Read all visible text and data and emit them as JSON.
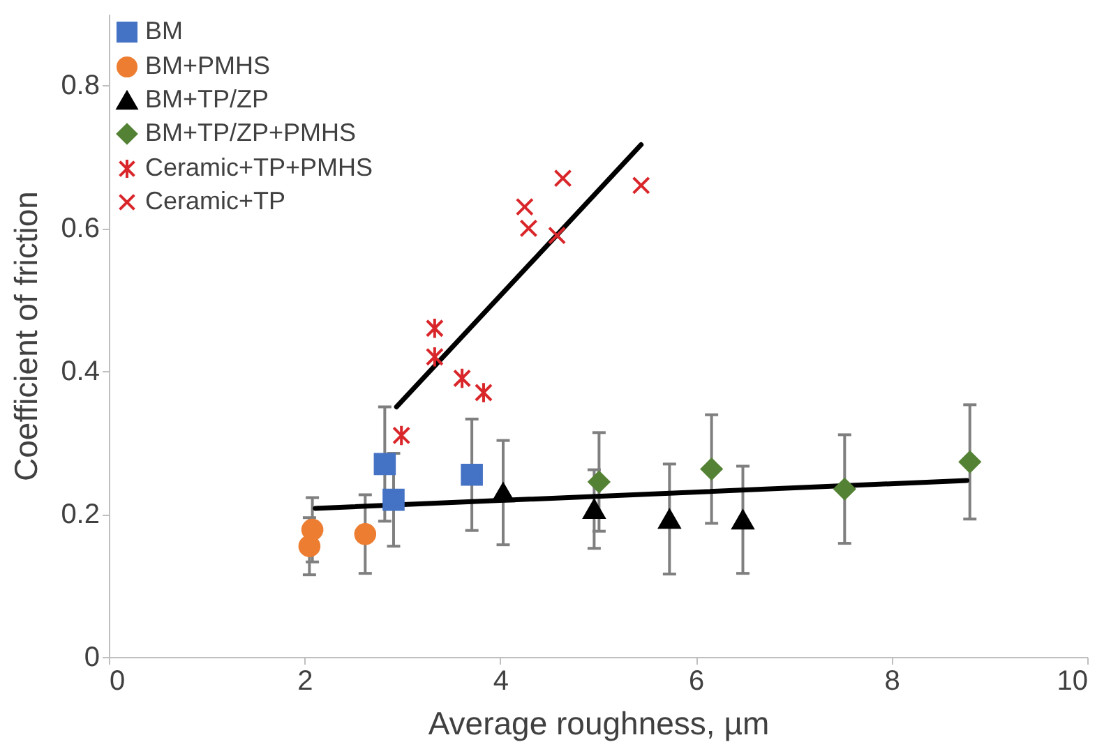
{
  "chart_data": {
    "type": "scatter",
    "xlabel": "Average roughness, µm",
    "ylabel": "Coefficient of friction",
    "xlim": [
      0,
      10
    ],
    "xticks": [
      0,
      2,
      4,
      6,
      8,
      10
    ],
    "ylim": [
      0,
      0.9
    ],
    "yticks": [
      0,
      0.2,
      0.4,
      0.6,
      0.8
    ],
    "grid": false,
    "legend": "top left",
    "series": [
      {
        "name": "BM",
        "type": "scatter",
        "marker": "square",
        "color": "#4472c4",
        "x": [
          2.82,
          2.91,
          3.71
        ],
        "values": [
          0.27,
          0.22,
          0.255
        ],
        "errors": [
          0.08,
          0.065,
          0.078
        ]
      },
      {
        "name": "BM+PMHS",
        "type": "scatter",
        "marker": "circle",
        "color": "#ed7d31",
        "x": [
          2.08,
          2.05,
          2.62
        ],
        "values": [
          0.178,
          0.155,
          0.172
        ],
        "errors": [
          0.045,
          0.04,
          0.055
        ]
      },
      {
        "name": "BM+TP/ZP",
        "type": "scatter",
        "marker": "triangle",
        "color": "#000000",
        "x": [
          4.03,
          4.96,
          5.73,
          6.48
        ],
        "values": [
          0.23,
          0.207,
          0.193,
          0.192
        ],
        "errors": [
          0.073,
          0.055,
          0.077,
          0.075
        ]
      },
      {
        "name": "BM+TP/ZP+PMHS",
        "type": "scatter",
        "marker": "diamond",
        "color": "#548235",
        "x": [
          5.01,
          6.16,
          7.52,
          8.8
        ],
        "values": [
          0.245,
          0.263,
          0.235,
          0.273
        ],
        "errors": [
          0.069,
          0.076,
          0.076,
          0.08
        ]
      },
      {
        "name": "Ceramic+TP+PMHS",
        "type": "scatter",
        "color": "#d9262a",
        "x": [
          2.99,
          3.33,
          3.33,
          3.61,
          3.83
        ],
        "values": [
          0.31,
          0.46,
          0.42,
          0.39,
          0.37
        ]
      },
      {
        "name": "Ceramic+TP",
        "type": "scatter",
        "marker": "cross",
        "color": "#d9262a",
        "x": [
          4.25,
          4.29,
          4.58,
          4.64,
          5.44
        ],
        "values": [
          0.63,
          0.6,
          0.59,
          0.67,
          0.66
        ]
      },
      {
        "type": "line",
        "color": "#000000",
        "x": [
          2.94,
          5.44
        ],
        "values": [
          0.35,
          0.717
        ]
      },
      {
        "type": "line",
        "color": "#000000",
        "x": [
          2.11,
          8.77
        ],
        "values": [
          0.208,
          0.247
        ]
      }
    ]
  }
}
